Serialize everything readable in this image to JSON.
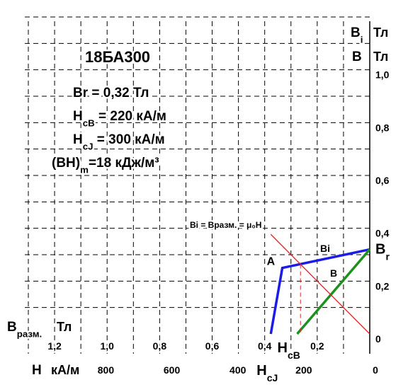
{
  "chart_data": {
    "type": "line",
    "title": "18БА300",
    "params": [
      [
        "Br = 0,32 Тл"
      ],
      [
        "H",
        "cB",
        " = 220 кА/м"
      ],
      [
        "H",
        "cJ",
        " = 300 кА/м"
      ],
      [
        "(BH)",
        "m",
        "=18 кДж/м³"
      ]
    ],
    "y_labels": [
      {
        "symbol": "B",
        "sub": "i",
        "unit": "Тл"
      },
      {
        "symbol": "B",
        "unit": "Тл"
      }
    ],
    "x_label": {
      "symbol": "H",
      "unit": "кА/м"
    },
    "x2_label": {
      "symbol": "B",
      "sub": "разм.",
      "unit": "Тл"
    },
    "xlim": [
      1035,
      0
    ],
    "xticks": [
      0,
      200,
      400,
      600,
      800
    ],
    "x2lim": [
      1.3,
      0
    ],
    "x2ticks": [
      {
        "value": 0.2,
        "label": "0,2"
      },
      {
        "value": 0.4,
        "label": "0,4"
      },
      {
        "value": 0.6,
        "label": "0,6"
      },
      {
        "value": 0.8,
        "label": "0,8"
      },
      {
        "value": 1.0,
        "label": "1,0"
      },
      {
        "value": 1.2,
        "label": "1,2"
      }
    ],
    "ylim": [
      0,
      1.2
    ],
    "yticks": [
      0,
      {
        "value": 0.2,
        "label": "0,2"
      },
      {
        "value": 0.4,
        "label": "0,4"
      },
      {
        "value": 0.6,
        "label": "0,6"
      },
      {
        "value": 0.8,
        "label": "0,8"
      },
      {
        "value": 1.0,
        "label": "1,0"
      }
    ],
    "grid": true,
    "series": [
      {
        "name": "Bi",
        "color": "#1c1ce8",
        "x": [
          300,
          265,
          0
        ],
        "values": [
          0,
          0.25,
          0.32
        ]
      },
      {
        "name": "B",
        "color": "#1e901e",
        "x": [
          220,
          0
        ],
        "values": [
          0,
          0.32
        ]
      },
      {
        "name": "Bi = Bразм. = μ₀H",
        "color": "#e52020",
        "x": [
          300,
          0
        ],
        "values": [
          0.377,
          0
        ]
      },
      {
        "color": "#e52020",
        "dash": true,
        "x": [
          210,
          210
        ],
        "values": [
          0.264,
          0
        ]
      }
    ],
    "point_label": {
      "text": "A",
      "x": 265,
      "y": 0.25
    },
    "br_label": {
      "symbol": "B",
      "sub": "r",
      "y": 0.32
    },
    "hcb_label": {
      "symbol": "H",
      "sub": "cB",
      "x": 220
    },
    "hcj_label": {
      "symbol": "H",
      "sub": "cJ",
      "x": 300
    }
  }
}
